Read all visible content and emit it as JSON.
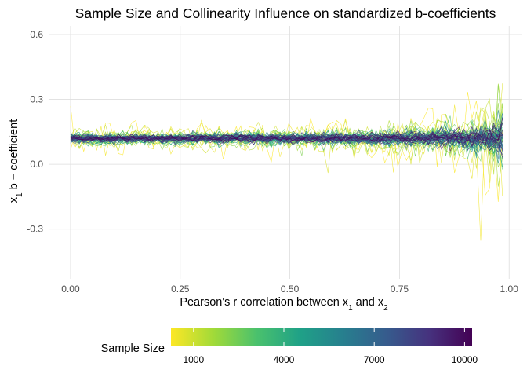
{
  "chart_data": {
    "type": "line",
    "title": "Sample Size and Collinearity Influence on standardized b-coefficients",
    "xlabel_parts": [
      "Pearson's r correlation between x",
      "1",
      " and x",
      "2"
    ],
    "ylabel_parts": [
      "x",
      "1",
      " b − coefficient"
    ],
    "xlim": [
      -0.05,
      1.03
    ],
    "ylim": [
      -0.53,
      0.64
    ],
    "x_ticks": [
      0.0,
      0.25,
      0.5,
      0.75,
      1.0
    ],
    "x_tick_labels": [
      "0.00",
      "0.25",
      "0.50",
      "0.75",
      "1.00"
    ],
    "y_ticks": [
      0.6,
      0.3,
      0.0,
      -0.3
    ],
    "y_tick_labels": [
      "0.6",
      "0.3",
      "0.0",
      "-0.3"
    ],
    "grid": true,
    "true_value": 0.12,
    "x_range": [
      0.0,
      0.985
    ],
    "n_points": 100,
    "n_series": 60,
    "series_description": "one line per sample size; spread of estimates shrinks as sample size grows and explodes as r approaches 1",
    "sample_size_range": [
      250,
      10250
    ],
    "legend": {
      "title": "Sample Size",
      "position": "bottom",
      "ticks": [
        1000,
        4000,
        7000,
        10000
      ],
      "tick_labels": [
        "1000",
        "4000",
        "7000",
        "10000"
      ],
      "colors": [
        "#fde725",
        "#a0da39",
        "#4ac16d",
        "#1fa187",
        "#277f8e",
        "#365c8d",
        "#46327e",
        "#440154"
      ]
    },
    "colors": {
      "grid": "#dedede",
      "text_axis": "#4d4d4d"
    }
  }
}
